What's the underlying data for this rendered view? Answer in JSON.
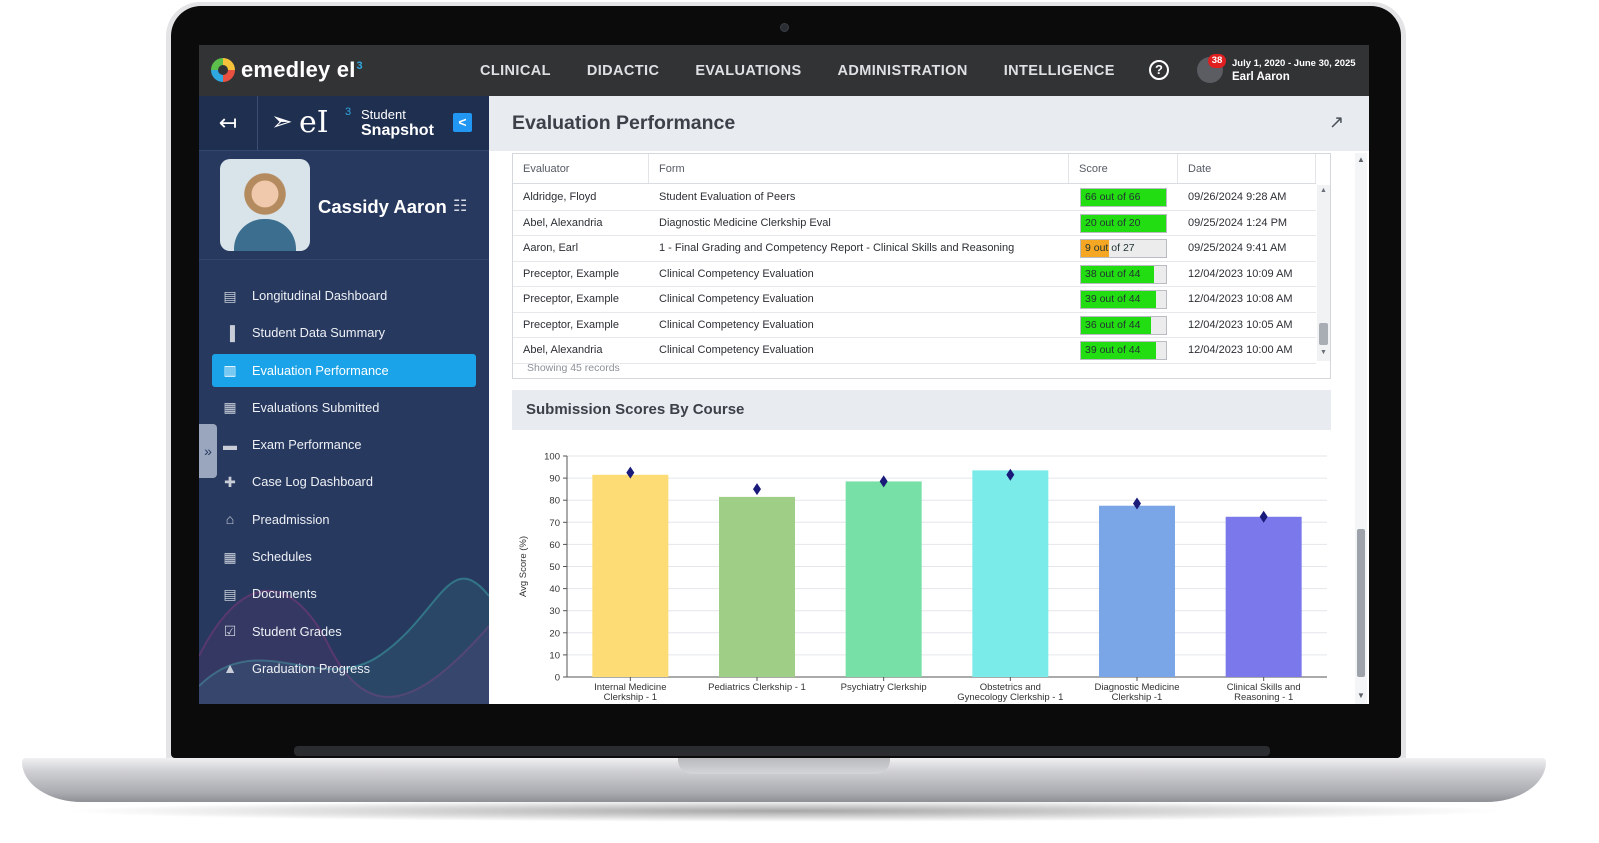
{
  "app": {
    "logo_text": "emedley eI",
    "logo_sup": "3",
    "nav": [
      "CLINICAL",
      "DIDACTIC",
      "EVALUATIONS",
      "ADMINISTRATION",
      "INTELLIGENCE"
    ],
    "help_glyph": "?",
    "user": {
      "badge": "38",
      "date_range": "July 1, 2020 - June 30, 2025",
      "name": "Earl Aaron"
    }
  },
  "sidebar": {
    "brand_text": "eI",
    "brand_sup": "3",
    "student_label": "Student",
    "snapshot_label": "Snapshot",
    "collapse_glyph": "<",
    "student_name": "Cassidy Aaron",
    "menu": [
      {
        "label": "Longitudinal Dashboard",
        "icon": "graduation-icon",
        "active": false
      },
      {
        "label": "Student Data Summary",
        "icon": "bar-chart-icon",
        "active": false
      },
      {
        "label": "Evaluation Performance",
        "icon": "clipboard-icon",
        "active": true
      },
      {
        "label": "Evaluations Submitted",
        "icon": "clipboard-list-icon",
        "active": false
      },
      {
        "label": "Exam Performance",
        "icon": "folder-icon",
        "active": false
      },
      {
        "label": "Case Log Dashboard",
        "icon": "medical-kit-icon",
        "active": false
      },
      {
        "label": "Preadmission",
        "icon": "building-icon",
        "active": false
      },
      {
        "label": "Schedules",
        "icon": "calendar-icon",
        "active": false
      },
      {
        "label": "Documents",
        "icon": "document-icon",
        "active": false
      },
      {
        "label": "Student Grades",
        "icon": "checkbox-icon",
        "active": false
      },
      {
        "label": "Graduation Progress",
        "icon": "graduation-cap-icon",
        "active": false
      }
    ]
  },
  "main": {
    "title": "Evaluation Performance",
    "table": {
      "headers": [
        "Evaluator",
        "Form",
        "Score",
        "Date"
      ],
      "rows": [
        {
          "evaluator": "Aldridge, Floyd",
          "form": "Student Evaluation of Peers",
          "score": "66 out of 66",
          "fraction": 1.0,
          "color": "#22dd11",
          "date": "09/26/2024 9:28 AM"
        },
        {
          "evaluator": "Abel, Alexandria",
          "form": "Diagnostic Medicine Clerkship Eval",
          "score": "20 out of 20",
          "fraction": 1.0,
          "color": "#22dd11",
          "date": "09/25/2024 1:24 PM"
        },
        {
          "evaluator": "Aaron, Earl",
          "form": "1 - Final Grading and Competency Report - Clinical Skills and Reasoning",
          "score": "9 out of 27",
          "fraction": 0.333,
          "color": "#f5a623",
          "date": "09/25/2024 9:41 AM"
        },
        {
          "evaluator": "Preceptor, Example",
          "form": "Clinical Competency Evaluation",
          "score": "38 out of 44",
          "fraction": 0.864,
          "color": "#22dd11",
          "date": "12/04/2023 10:09 AM"
        },
        {
          "evaluator": "Preceptor, Example",
          "form": "Clinical Competency Evaluation",
          "score": "39 out of 44",
          "fraction": 0.886,
          "color": "#22dd11",
          "date": "12/04/2023 10:08 AM"
        },
        {
          "evaluator": "Preceptor, Example",
          "form": "Clinical Competency Evaluation",
          "score": "36 out of 44",
          "fraction": 0.818,
          "color": "#22dd11",
          "date": "12/04/2023 10:05 AM"
        },
        {
          "evaluator": "Abel, Alexandria",
          "form": "Clinical Competency Evaluation",
          "score": "39 out of 44",
          "fraction": 0.886,
          "color": "#22dd11",
          "date": "12/04/2023 10:00 AM"
        }
      ],
      "footer": "Showing 45 records"
    },
    "chart_title": "Submission Scores By Course"
  },
  "chart_data": {
    "type": "bar",
    "title": "Submission Scores By Course",
    "xlabel": "",
    "ylabel": "Avg Score (%)",
    "ylim": [
      0,
      100
    ],
    "yticks": [
      0,
      10,
      20,
      30,
      40,
      50,
      60,
      70,
      80,
      90,
      100
    ],
    "grid": true,
    "categories": [
      [
        "Internal Medicine",
        "Clerkship - 1"
      ],
      [
        "Pediatrics Clerkship - 1"
      ],
      [
        "Psychiatry Clerkship"
      ],
      [
        "Obstetrics and",
        "Gynecology Clerkship - 1"
      ],
      [
        "Diagnostic Medicine",
        "Clerkship -1"
      ],
      [
        "Clinical Skills and",
        "Reasoning - 1"
      ]
    ],
    "values": [
      91.5,
      81.5,
      88.5,
      93.5,
      77.5,
      72.5
    ],
    "markers": [
      92.5,
      85,
      88.5,
      91.5,
      78.5,
      72.5
    ],
    "colors": [
      "#fddc75",
      "#9fce86",
      "#77e0a6",
      "#7bebea",
      "#7aa6e8",
      "#7a78ea"
    ],
    "marker_color": "#1a1a7a"
  }
}
